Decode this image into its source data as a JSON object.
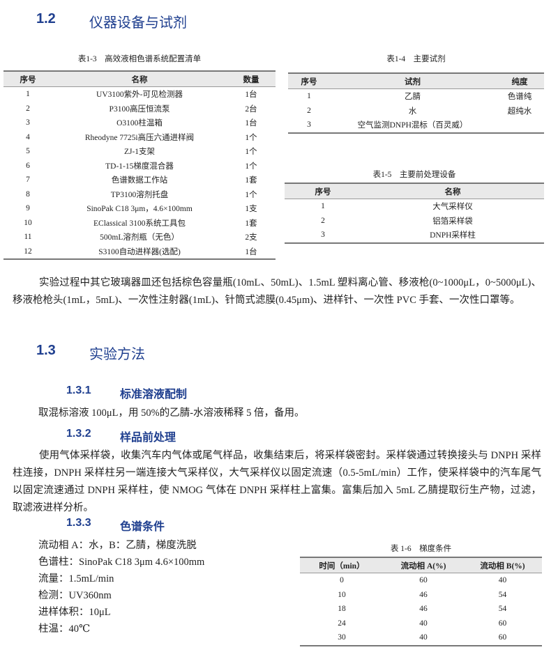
{
  "section_1_2": {
    "num": "1.2",
    "title": "仪器设备与试剂"
  },
  "table_1_3": {
    "caption": "表1-3　高效液相色谱系统配置清单",
    "headers": [
      "序号",
      "名称",
      "数量"
    ],
    "rows": [
      [
        "1",
        "UV3100紫外-可见检测器",
        "1台"
      ],
      [
        "2",
        "P3100高压恒流泵",
        "2台"
      ],
      [
        "3",
        "O3100柱温箱",
        "1台"
      ],
      [
        "4",
        "Rheodyne 7725i高压六通进样阀",
        "1个"
      ],
      [
        "5",
        "ZJ-1支架",
        "1个"
      ],
      [
        "6",
        "TD-1-15梯度混合器",
        "1个"
      ],
      [
        "7",
        "色谱数据工作站",
        "1套"
      ],
      [
        "8",
        "TP3100溶剂托盘",
        "1个"
      ],
      [
        "9",
        "SinoPak C18 3μm，4.6×100mm",
        "1支"
      ],
      [
        "10",
        "EClassical 3100系统工具包",
        "1套"
      ],
      [
        "11",
        "500mL溶剂瓶（无色）",
        "2支"
      ],
      [
        "12",
        "S3100自动进样器(选配)",
        "1台"
      ]
    ]
  },
  "table_1_4": {
    "caption": "表1-4　主要试剂",
    "headers": [
      "序号",
      "试剂",
      "纯度"
    ],
    "rows": [
      [
        "1",
        "乙腈",
        "色谱纯"
      ],
      [
        "2",
        "水",
        "超纯水"
      ],
      [
        "3",
        "空气监测DNPH混标（百灵威）",
        ""
      ]
    ]
  },
  "table_1_5": {
    "caption": "表1-5　主要前处理设备",
    "headers": [
      "序号",
      "名称"
    ],
    "rows": [
      [
        "1",
        "大气采样仪"
      ],
      [
        "2",
        "铝箔采样袋"
      ],
      [
        "3",
        "DNPH采样柱"
      ]
    ]
  },
  "glassware_paragraph": "实验过程中其它玻璃器皿还包括棕色容量瓶(10mL、50mL)、1.5mL 塑料离心管、移液枪(0~1000μL，0~5000μL)、移液枪枪头(1mL，5mL)、一次性注射器(1mL)、针筒式滤膜(0.45μm)、进样针、一次性 PVC 手套、一次性口罩等。",
  "section_1_3": {
    "num": "1.3",
    "title": "实验方法"
  },
  "section_1_3_1": {
    "num": "1.3.1",
    "title": "标准溶液配制",
    "text": "取混标溶液 100μL，用 50%的乙腈-水溶液稀释 5 倍，备用。"
  },
  "section_1_3_2": {
    "num": "1.3.2",
    "title": "样品前处理",
    "text": "使用气体采样袋，收集汽车内气体或尾气样品，收集结束后，将采样袋密封。采样袋通过转换接头与 DNPH 采样柱连接，DNPH 采样柱另一端连接大气采样仪，大气采样仪以固定流速（0.5-5mL/min）工作，使采样袋中的汽车尾气以固定流速通过 DNPH 采样柱，使 NMOG 气体在 DNPH 采样柱上富集。富集后加入 5mL 乙腈提取衍生产物，过滤，取滤液进样分析。"
  },
  "section_1_3_3": {
    "num": "1.3.3",
    "title": "色谱条件",
    "conditions": [
      "流动相 A：水，B：乙腈，梯度洗脱",
      "色谱柱：SinoPak C18 3μm 4.6×100mm",
      "流量：1.5mL/min",
      "检测：UV360nm",
      "进样体积：10μL",
      "柱温：40℃"
    ]
  },
  "table_1_6": {
    "caption": "表 1-6　梯度条件",
    "headers": [
      "时间（min）",
      "流动相 A(%)",
      "流动相 B(%)"
    ],
    "rows": [
      [
        "0",
        "60",
        "40"
      ],
      [
        "10",
        "46",
        "54"
      ],
      [
        "18",
        "46",
        "54"
      ],
      [
        "24",
        "40",
        "60"
      ],
      [
        "30",
        "40",
        "60"
      ]
    ]
  }
}
